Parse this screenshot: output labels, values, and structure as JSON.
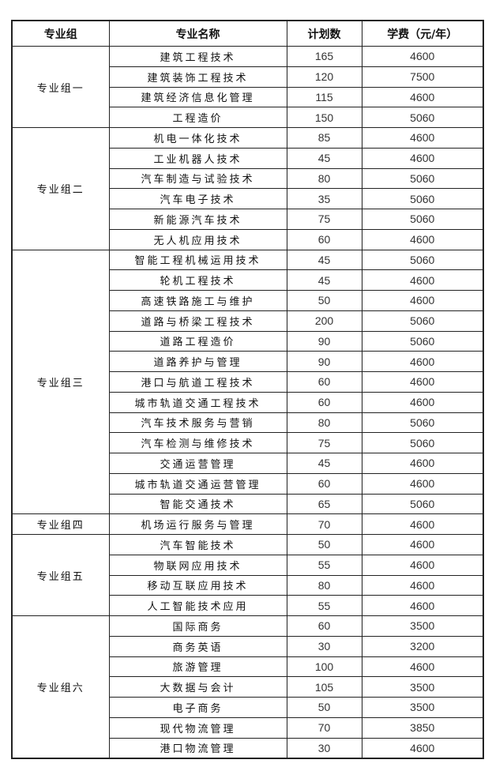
{
  "headers": [
    "专业组",
    "专业名称",
    "计划数",
    "学费（元/年）"
  ],
  "groups": [
    {
      "name": "专业组一",
      "rows": [
        {
          "major": "建筑工程技术",
          "plan": "165",
          "fee": "4600"
        },
        {
          "major": "建筑装饰工程技术",
          "plan": "120",
          "fee": "7500"
        },
        {
          "major": "建筑经济信息化管理",
          "plan": "115",
          "fee": "4600"
        },
        {
          "major": "工程造价",
          "plan": "150",
          "fee": "5060"
        }
      ]
    },
    {
      "name": "专业组二",
      "rows": [
        {
          "major": "机电一体化技术",
          "plan": "85",
          "fee": "4600"
        },
        {
          "major": "工业机器人技术",
          "plan": "45",
          "fee": "4600"
        },
        {
          "major": "汽车制造与试验技术",
          "plan": "80",
          "fee": "5060"
        },
        {
          "major": "汽车电子技术",
          "plan": "35",
          "fee": "5060"
        },
        {
          "major": "新能源汽车技术",
          "plan": "75",
          "fee": "5060"
        },
        {
          "major": "无人机应用技术",
          "plan": "60",
          "fee": "4600"
        }
      ]
    },
    {
      "name": "专业组三",
      "rows": [
        {
          "major": "智能工程机械运用技术",
          "plan": "45",
          "fee": "5060"
        },
        {
          "major": "轮机工程技术",
          "plan": "45",
          "fee": "4600"
        },
        {
          "major": "高速铁路施工与维护",
          "plan": "50",
          "fee": "4600"
        },
        {
          "major": "道路与桥梁工程技术",
          "plan": "200",
          "fee": "5060"
        },
        {
          "major": "道路工程造价",
          "plan": "90",
          "fee": "5060"
        },
        {
          "major": "道路养护与管理",
          "plan": "90",
          "fee": "4600"
        },
        {
          "major": "港口与航道工程技术",
          "plan": "60",
          "fee": "4600"
        },
        {
          "major": "城市轨道交通工程技术",
          "plan": "60",
          "fee": "4600"
        },
        {
          "major": "汽车技术服务与营销",
          "plan": "80",
          "fee": "5060"
        },
        {
          "major": "汽车检测与维修技术",
          "plan": "75",
          "fee": "5060"
        },
        {
          "major": "交通运营管理",
          "plan": "45",
          "fee": "4600"
        },
        {
          "major": "城市轨道交通运营管理",
          "plan": "60",
          "fee": "4600"
        },
        {
          "major": "智能交通技术",
          "plan": "65",
          "fee": "5060"
        }
      ]
    },
    {
      "name": "专业组四",
      "rows": [
        {
          "major": "机场运行服务与管理",
          "plan": "70",
          "fee": "4600"
        }
      ]
    },
    {
      "name": "专业组五",
      "rows": [
        {
          "major": "汽车智能技术",
          "plan": "50",
          "fee": "4600"
        },
        {
          "major": "物联网应用技术",
          "plan": "55",
          "fee": "4600"
        },
        {
          "major": "移动互联应用技术",
          "plan": "80",
          "fee": "4600"
        },
        {
          "major": "人工智能技术应用",
          "plan": "55",
          "fee": "4600"
        }
      ]
    },
    {
      "name": "专业组六",
      "rows": [
        {
          "major": "国际商务",
          "plan": "60",
          "fee": "3500"
        },
        {
          "major": "商务英语",
          "plan": "30",
          "fee": "3200"
        },
        {
          "major": "旅游管理",
          "plan": "100",
          "fee": "4600"
        },
        {
          "major": "大数据与会计",
          "plan": "105",
          "fee": "3500"
        },
        {
          "major": "电子商务",
          "plan": "50",
          "fee": "3500"
        },
        {
          "major": "现代物流管理",
          "plan": "70",
          "fee": "3850"
        },
        {
          "major": "港口物流管理",
          "plan": "30",
          "fee": "4600"
        }
      ]
    }
  ]
}
